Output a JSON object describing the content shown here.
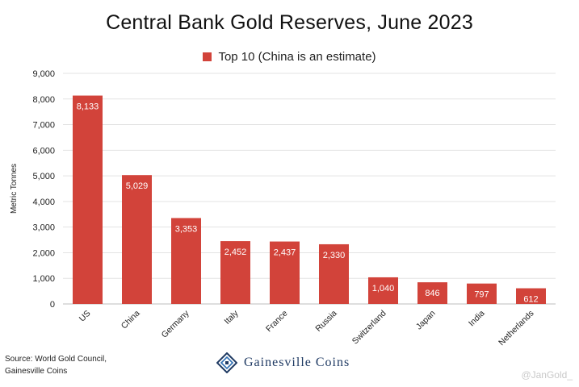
{
  "chart_data": {
    "type": "bar",
    "title": "Central Bank Gold Reserves, June 2023",
    "ylabel": "Metric Tonnes",
    "xlabel": "",
    "ylim": [
      0,
      9000
    ],
    "y_ticks": [
      "0",
      "1,000",
      "2,000",
      "3,000",
      "4,000",
      "5,000",
      "6,000",
      "7,000",
      "8,000",
      "9,000"
    ],
    "grid": true,
    "legend_position": "top-center",
    "categories": [
      "US",
      "China",
      "Germany",
      "Italy",
      "France",
      "Russia",
      "Switzerland",
      "Japan",
      "India",
      "Netherlands"
    ],
    "series": [
      {
        "name": "Top 10 (China is an estimate)",
        "color": "#d2433a",
        "values": [
          8133,
          5029,
          3353,
          2452,
          2437,
          2330,
          1040,
          846,
          797,
          612
        ],
        "labels": [
          "8,133",
          "5,029",
          "3,353",
          "2,452",
          "2,437",
          "2,330",
          "1,040",
          "846",
          "797",
          "612"
        ]
      }
    ]
  },
  "footer": {
    "source_line_1": "Source: World Gold Council,",
    "source_line_2": "Gainesville Coins",
    "brand": "Gainesville Coins",
    "brand_logo_icon": "gainesville-logo-icon",
    "watermark": "@JanGold_"
  }
}
